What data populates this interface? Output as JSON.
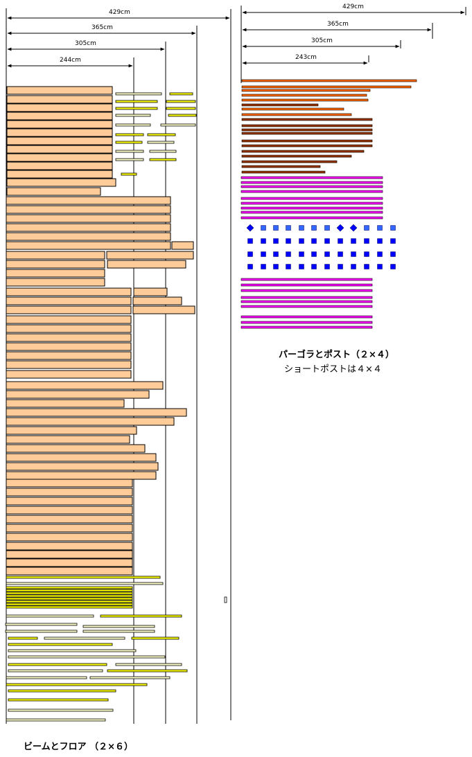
{
  "left_panel": {
    "caption": "ビームとフロア （２×６）",
    "dimensions": [
      "429cm",
      "365cm",
      "305cm",
      "244cm"
    ]
  },
  "right_panel": {
    "title": "パーゴラとポスト（２×４）",
    "subtitle": "ショートポストは４×４",
    "dimensions": [
      "429cm",
      "365cm",
      "305cm",
      "243cm"
    ]
  },
  "colors": {
    "beam_fill": "#ffcc99",
    "floor_yellow": "#ffff00",
    "floor_cream": "#ffffcc",
    "pergola_orange": "#ff6600",
    "pergola_brown": "#993300",
    "post_magenta": "#ff00ff",
    "post_marker_blue": "#0000ff",
    "post_marker_light": "#3366ff"
  }
}
